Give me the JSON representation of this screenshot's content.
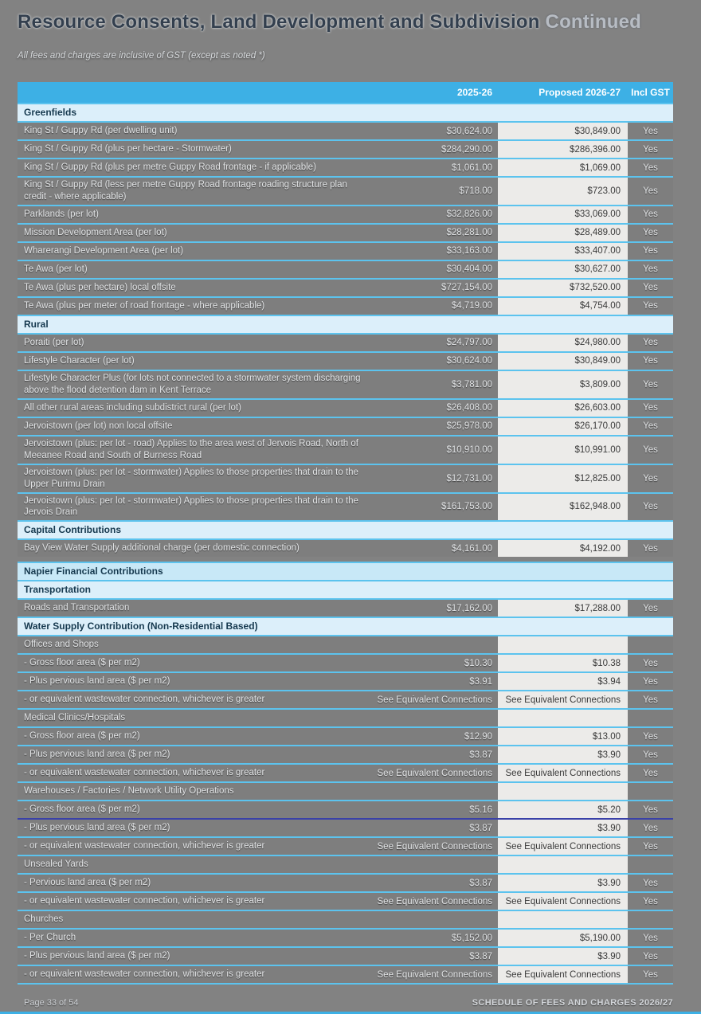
{
  "page": {
    "title": "Resource Consents, Land Development and Subdivision",
    "title_suffix": "Continued",
    "subtitle": "All fees and charges are inclusive of GST (except as noted *)",
    "footer_left": "Page 33 of 54",
    "footer_right": "SCHEDULE OF FEES AND CHARGES 2026/27"
  },
  "colors": {
    "page_bg": "#828282",
    "header_bar": "#3DB0E5",
    "section_bg": "#DCEFFA",
    "major_section_bg": "#C8E8F7",
    "row_bg": "#7E7E7E",
    "proposed_cell_bg": "#ECEBE9",
    "divider": "#5CC3EE",
    "dark_divider": "#3A41A8"
  },
  "table": {
    "col_prev": "2025-26",
    "col_prop": "Proposed 2026-27",
    "col_gst": "Incl GST",
    "rows": [
      {
        "t": "section",
        "label": "Greenfields"
      },
      {
        "t": "item",
        "label": "King St / Guppy Rd (per dwelling unit)",
        "prev": "$30,624.00",
        "prop": "$30,849.00",
        "gst": "Yes"
      },
      {
        "t": "item",
        "label": "King St / Guppy Rd (plus per hectare - Stormwater)",
        "prev": "$284,290.00",
        "prop": "$286,396.00",
        "gst": "Yes"
      },
      {
        "t": "item",
        "label": "King St / Guppy Rd (plus per metre Guppy Road frontage - if applicable)",
        "prev": "$1,061.00",
        "prop": "$1,069.00",
        "gst": "Yes"
      },
      {
        "t": "item",
        "label": "King St / Guppy Rd (less per metre Guppy Road frontage roading structure plan credit - where applicable)",
        "prev": "$718.00",
        "prop": "$723.00",
        "gst": "Yes"
      },
      {
        "t": "item",
        "label": "Parklands (per lot)",
        "prev": "$32,826.00",
        "prop": "$33,069.00",
        "gst": "Yes"
      },
      {
        "t": "item",
        "label": "Mission Development Area (per lot)",
        "prev": "$28,281.00",
        "prop": "$28,489.00",
        "gst": "Yes"
      },
      {
        "t": "item",
        "label": "Wharerangi Development Area (per lot)",
        "prev": "$33,163.00",
        "prop": "$33,407.00",
        "gst": "Yes"
      },
      {
        "t": "item",
        "label": "Te Awa (per lot)",
        "prev": "$30,404.00",
        "prop": "$30,627.00",
        "gst": "Yes"
      },
      {
        "t": "item",
        "label": "Te Awa (plus per hectare) local offsite",
        "prev": "$727,154.00",
        "prop": "$732,520.00",
        "gst": "Yes"
      },
      {
        "t": "item",
        "label": "Te Awa (plus per meter of road frontage - where applicable)",
        "prev": "$4,719.00",
        "prop": "$4,754.00",
        "gst": "Yes"
      },
      {
        "t": "section",
        "label": "Rural"
      },
      {
        "t": "item",
        "label": "Poraiti (per lot)",
        "prev": "$24,797.00",
        "prop": "$24,980.00",
        "gst": "Yes"
      },
      {
        "t": "item",
        "label": "Lifestyle Character (per lot)",
        "prev": "$30,624.00",
        "prop": "$30,849.00",
        "gst": "Yes"
      },
      {
        "t": "item",
        "label": "Lifestyle Character Plus (for lots not connected to a stormwater system discharging above the flood detention dam in Kent Terrace",
        "prev": "$3,781.00",
        "prop": "$3,809.00",
        "gst": "Yes"
      },
      {
        "t": "item",
        "label": "All other rural areas including subdistrict rural (per lot)",
        "prev": "$26,408.00",
        "prop": "$26,603.00",
        "gst": "Yes"
      },
      {
        "t": "item",
        "label": "Jervoistown (per lot) non local offsite",
        "prev": "$25,978.00",
        "prop": "$26,170.00",
        "gst": "Yes"
      },
      {
        "t": "item",
        "label": "Jervoistown (plus: per lot - road) Applies to the area west of Jervois Road, North of Meeanee Road and South of Burness Road",
        "prev": "$10,910.00",
        "prop": "$10,991.00",
        "gst": "Yes"
      },
      {
        "t": "item",
        "label": "Jervoistown (plus: per lot - stormwater) Applies to those properties that drain to the Upper Purimu Drain",
        "prev": "$12,731.00",
        "prop": "$12,825.00",
        "gst": "Yes"
      },
      {
        "t": "item",
        "label": "Jervoistown (plus: per lot - stormwater) Applies to those properties that drain to the Jervois Drain",
        "prev": "$161,753.00",
        "prop": "$162,948.00",
        "gst": "Yes"
      },
      {
        "t": "section",
        "label": "Capital Contributions"
      },
      {
        "t": "item",
        "label": "Bay View Water Supply additional charge (per domestic connection)",
        "prev": "$4,161.00",
        "prop": "$4,192.00",
        "gst": "Yes"
      },
      {
        "t": "major",
        "label": "Napier Financial Contributions",
        "gap": true
      },
      {
        "t": "section",
        "label": "Transportation"
      },
      {
        "t": "item",
        "label": "Roads and Transportation",
        "prev": "$17,162.00",
        "prop": "$17,288.00",
        "gst": "Yes"
      },
      {
        "t": "section",
        "label": "Water Supply Contribution (Non-Residential Based)"
      },
      {
        "t": "sub",
        "label": "Offices and Shops",
        "prev": "",
        "prop": "",
        "gst": ""
      },
      {
        "t": "item",
        "label": "- Gross floor area ($ per m2)",
        "prev": "$10.30",
        "prop": "$10.38",
        "gst": "Yes"
      },
      {
        "t": "item",
        "label": "- Plus pervious land area ($ per m2)",
        "prev": "$3.91",
        "prop": "$3.94",
        "gst": "Yes"
      },
      {
        "t": "item",
        "label": "- or equivalent wastewater connection, whichever is greater",
        "prev": "See Equivalent Connections",
        "prop": "See Equivalent Connections",
        "gst": "Yes"
      },
      {
        "t": "sub",
        "label": "Medical Clinics/Hospitals",
        "prev": "",
        "prop": "",
        "gst": ""
      },
      {
        "t": "item",
        "label": "- Gross floor area ($ per m2)",
        "prev": "$12.90",
        "prop": "$13.00",
        "gst": "Yes"
      },
      {
        "t": "item",
        "label": "- Plus pervious land area ($ per m2)",
        "prev": "$3.87",
        "prop": "$3.90",
        "gst": "Yes"
      },
      {
        "t": "item",
        "label": "- or equivalent wastewater connection, whichever is greater",
        "prev": "See Equivalent Connections",
        "prop": "See Equivalent Connections",
        "gst": "Yes"
      },
      {
        "t": "sub",
        "label": "Warehouses / Factories / Network Utility Operations",
        "prev": "",
        "prop": "",
        "gst": ""
      },
      {
        "t": "item",
        "label": "- Gross floor area ($ per m2)",
        "prev": "$5.16",
        "prop": "$5.20",
        "gst": "Yes"
      },
      {
        "t": "item",
        "label": "- Plus pervious land area ($ per m2)",
        "prev": "$3.87",
        "prop": "$3.90",
        "gst": "Yes",
        "dark_top": true
      },
      {
        "t": "item",
        "label": "- or equivalent wastewater connection, whichever is greater",
        "prev": "See Equivalent Connections",
        "prop": "See Equivalent Connections",
        "gst": "Yes"
      },
      {
        "t": "sub",
        "label": "Unsealed Yards",
        "prev": "",
        "prop": "",
        "gst": ""
      },
      {
        "t": "item",
        "label": "- Pervious land area ($ per m2)",
        "prev": "$3.87",
        "prop": "$3.90",
        "gst": "Yes"
      },
      {
        "t": "item",
        "label": "- or equivalent wastewater connection, whichever is greater",
        "prev": "See Equivalent Connections",
        "prop": "See Equivalent Connections",
        "gst": "Yes"
      },
      {
        "t": "sub",
        "label": "Churches",
        "prev": "",
        "prop": "",
        "gst": ""
      },
      {
        "t": "item",
        "label": "- Per Church",
        "prev": "$5,152.00",
        "prop": "$5,190.00",
        "gst": "Yes"
      },
      {
        "t": "item",
        "label": "- Plus pervious land area ($ per m2)",
        "prev": "$3.87",
        "prop": "$3.90",
        "gst": "Yes"
      },
      {
        "t": "item",
        "label": "- or equivalent wastewater connection, whichever is greater",
        "prev": "See Equivalent Connections",
        "prop": "See Equivalent Connections",
        "gst": "Yes"
      }
    ]
  }
}
